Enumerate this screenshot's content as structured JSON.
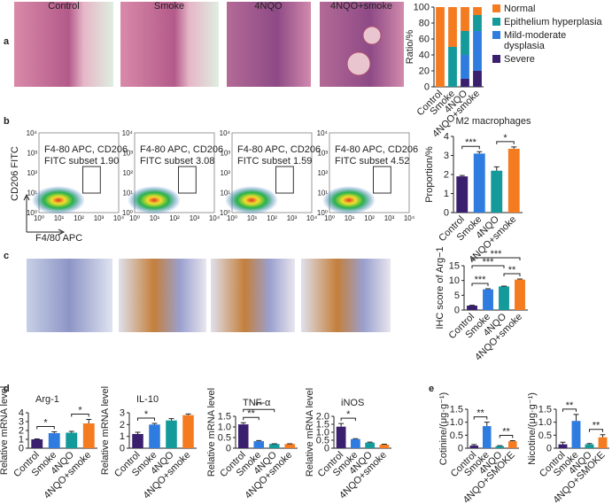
{
  "panels": {
    "labels": [
      "a",
      "b",
      "c",
      "d",
      "e"
    ],
    "a_images": [
      "Control",
      "Smoke",
      "4NQO",
      "4NQO+smoke"
    ],
    "flow": {
      "x_label": "F4/80 APC",
      "y_label": "CD206 FITC",
      "ticks": [
        "10⁰",
        "10¹",
        "10²",
        "10³",
        "10⁴"
      ],
      "plots": [
        {
          "gate_lines": [
            "F4-80 APC, CD206",
            "FITC subset 1.90"
          ]
        },
        {
          "gate_lines": [
            "F4-80 APC, CD206",
            "FITC subset 3.08"
          ]
        },
        {
          "gate_lines": [
            "F4-80 APC, CD206",
            "FITC subset 1.59"
          ]
        },
        {
          "gate_lines": [
            "F4-80 APC, CD206",
            "FITC subset 4.52"
          ]
        }
      ]
    }
  },
  "chart_data": [
    {
      "type": "stacked_bar",
      "y_label": "Ratio/%",
      "categories": [
        "Control",
        "Smoke",
        "4NQO",
        "4NQO+smoke"
      ],
      "series": [
        {
          "name": "Normal",
          "color": "#f47b20",
          "values": [
            100,
            50,
            30,
            10
          ]
        },
        {
          "name": "Epithelium hyperplasia",
          "color": "#149a9a",
          "values": [
            0,
            50,
            30,
            20
          ]
        },
        {
          "name": "Mild-moderate dysplasia",
          "color": "#2f7ce0",
          "values": [
            0,
            0,
            30,
            50
          ]
        },
        {
          "name": "Severe",
          "color": "#3a1f6e",
          "values": [
            0,
            0,
            10,
            20
          ]
        }
      ],
      "ylim": [
        0,
        100
      ],
      "yticks": [
        0,
        20,
        40,
        60,
        80,
        100
      ]
    },
    {
      "type": "bar",
      "title": "M2 macrophages",
      "y_label": "Proportion/%",
      "categories": [
        "Control",
        "Smoke",
        "4NQO",
        "4NQO+smoke"
      ],
      "values": [
        1.9,
        3.1,
        2.2,
        3.35
      ],
      "errors": [
        0.05,
        0.1,
        0.2,
        0.1
      ],
      "colors": [
        "#3a1f6e",
        "#2f7ce0",
        "#149a9a",
        "#f47b20"
      ],
      "ylim": [
        0,
        4
      ],
      "yticks": [
        0,
        1,
        2,
        3,
        4
      ],
      "significance": [
        {
          "from": 0,
          "to": 1,
          "label": "***"
        },
        {
          "from": 2,
          "to": 3,
          "label": "*"
        }
      ]
    },
    {
      "type": "bar",
      "y_label": "IHC score of Arg−1",
      "categories": [
        "Control",
        "Smoke",
        "4NQO",
        "4NQO+smoke"
      ],
      "values": [
        1.5,
        7,
        8,
        10.3
      ],
      "errors": [
        0.1,
        0.2,
        0.1,
        0.2
      ],
      "colors": [
        "#3a1f6e",
        "#2f7ce0",
        "#149a9a",
        "#f47b20"
      ],
      "ylim": [
        0,
        15
      ],
      "yticks": [
        0,
        5,
        10,
        15
      ],
      "significance": [
        {
          "from": 0,
          "to": 1,
          "label": "***"
        },
        {
          "from": 2,
          "to": 3,
          "label": "**"
        },
        {
          "from": 0,
          "to": 2,
          "label": "***"
        },
        {
          "from": 0,
          "to": 3,
          "label": "***"
        }
      ]
    },
    {
      "type": "bar",
      "title": "Arg-1",
      "y_label": "Relative mRNA level",
      "categories": [
        "Control",
        "Smoke",
        "4NQO",
        "4NQO+smoke"
      ],
      "values": [
        1,
        1.7,
        1.75,
        2.8
      ],
      "errors": [
        0.05,
        0.15,
        0.15,
        0.45
      ],
      "colors": [
        "#3a1f6e",
        "#2f7ce0",
        "#149a9a",
        "#f47b20"
      ],
      "ylim": [
        0,
        4
      ],
      "yticks": [
        0,
        1,
        2,
        3,
        4
      ],
      "significance": [
        {
          "from": 0,
          "to": 1,
          "label": "*"
        },
        {
          "from": 2,
          "to": 3,
          "label": "*"
        }
      ]
    },
    {
      "type": "bar",
      "title": "IL-10",
      "y_label": "Relative mRNA level",
      "categories": [
        "Control",
        "Smoke",
        "4NQO",
        "4NQO+smoke"
      ],
      "values": [
        1.2,
        2.0,
        2.35,
        2.8
      ],
      "errors": [
        0.15,
        0.1,
        0.15,
        0.1
      ],
      "colors": [
        "#3a1f6e",
        "#2f7ce0",
        "#149a9a",
        "#f47b20"
      ],
      "ylim": [
        0,
        3
      ],
      "yticks": [
        0,
        1,
        2,
        3
      ],
      "significance": [
        {
          "from": 0,
          "to": 1,
          "label": "*"
        }
      ]
    },
    {
      "type": "bar",
      "title": "TNF-α",
      "y_label": "Relative mRNA level",
      "categories": [
        "Control",
        "Smoke",
        "4NQO",
        "4NQO+smoke"
      ],
      "values": [
        1.12,
        0.33,
        0.2,
        0.2
      ],
      "errors": [
        0.08,
        0.03,
        0.01,
        0.01
      ],
      "colors": [
        "#3a1f6e",
        "#2f7ce0",
        "#149a9a",
        "#f47b20"
      ],
      "ylim": [
        0,
        1.5
      ],
      "yticks": [
        0,
        0.5,
        {
          "value": 1,
          "label": "1.0"
        },
        1.5
      ],
      "significance": [
        {
          "from": 0,
          "to": 1,
          "label": "**"
        },
        {
          "from": 0,
          "to": 2,
          "label": "**"
        }
      ]
    },
    {
      "type": "bar",
      "title": "iNOS",
      "y_label": "Relative mRNA level",
      "categories": [
        "Control",
        "Smoke",
        "4NQO",
        "4NQO+smoke"
      ],
      "values": [
        1.35,
        0.57,
        0.35,
        0.22
      ],
      "errors": [
        0.2,
        0.03,
        0.03,
        0.03
      ],
      "colors": [
        "#3a1f6e",
        "#2f7ce0",
        "#149a9a",
        "#f47b20"
      ],
      "ylim": [
        0,
        2
      ],
      "yticks": [
        0,
        0.5,
        {
          "value": 1,
          "label": "1.0"
        },
        1.5,
        {
          "value": 2,
          "label": "2.0"
        }
      ],
      "significance": [
        {
          "from": 0,
          "to": 1,
          "label": "*"
        }
      ]
    },
    {
      "type": "bar",
      "y_label": "Cotinine/(μg·g⁻¹)",
      "categories": [
        "Control",
        "Smoke",
        "4NQO",
        "4NQO+SMOKE"
      ],
      "values": [
        0.1,
        0.85,
        0.08,
        0.27
      ],
      "errors": [
        0.04,
        0.15,
        0.02,
        0.02
      ],
      "colors": [
        "#3a1f6e",
        "#2f7ce0",
        "#149a9a",
        "#f47b20"
      ],
      "ylim": [
        0,
        1.5
      ],
      "yticks": [
        0,
        0.5,
        {
          "value": 1,
          "label": "1.0"
        },
        1.5
      ],
      "significance": [
        {
          "from": 0,
          "to": 1,
          "label": "**"
        },
        {
          "from": 2,
          "to": 3,
          "label": "**"
        }
      ]
    },
    {
      "type": "bar",
      "y_label": "Nicotine/(μg·g⁻¹)",
      "categories": [
        "Control",
        "Smoke",
        "4NQO",
        "4NQO+SMOKE"
      ],
      "values": [
        0.15,
        1.05,
        0.15,
        0.42
      ],
      "errors": [
        0.08,
        0.25,
        0.03,
        0.1
      ],
      "colors": [
        "#3a1f6e",
        "#2f7ce0",
        "#149a9a",
        "#f47b20"
      ],
      "ylim": [
        0,
        1.5
      ],
      "yticks": [
        0,
        0.5,
        {
          "value": 1,
          "label": "1.0"
        },
        1.5
      ],
      "significance": [
        {
          "from": 0,
          "to": 1,
          "label": "**"
        },
        {
          "from": 2,
          "to": 3,
          "label": "**"
        }
      ]
    }
  ]
}
